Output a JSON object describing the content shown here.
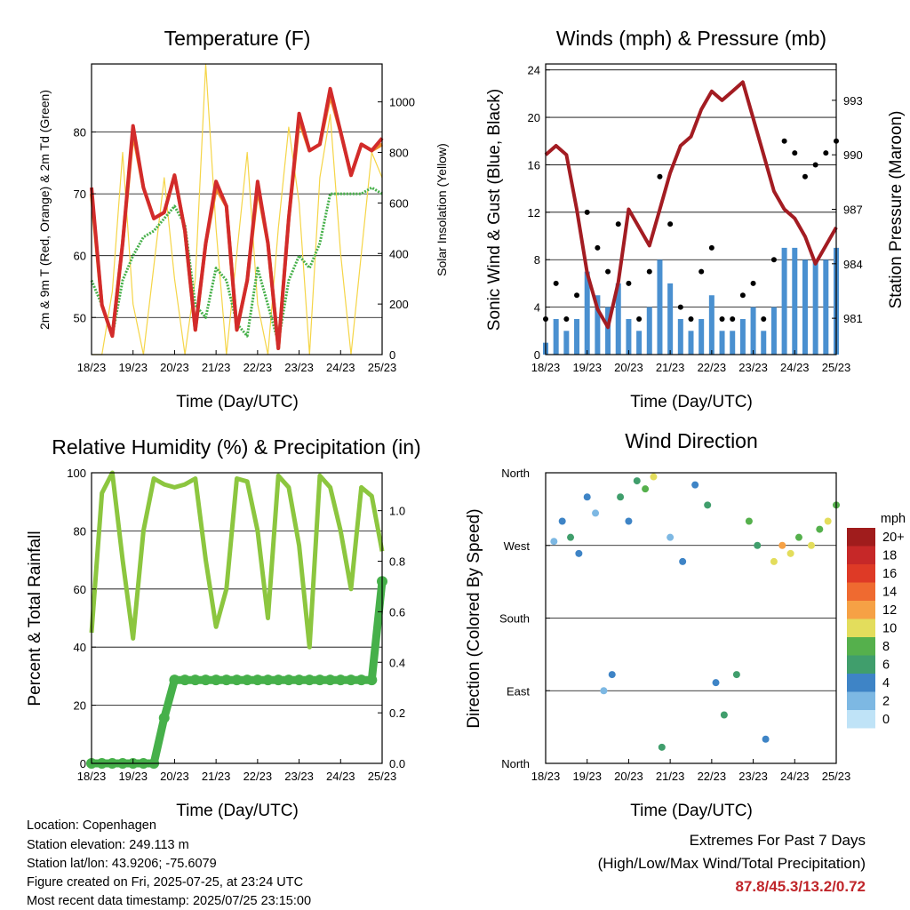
{
  "x_ticks": [
    "18/23",
    "19/23",
    "20/23",
    "21/23",
    "22/23",
    "23/23",
    "24/23",
    "25/23"
  ],
  "charts": {
    "temperature": {
      "title": "Temperature (F)",
      "xlabel": "Time (Day/UTC)",
      "ylabel_left": "2m & 9m T (Red, Orange) & 2m Td (Green)",
      "ylabel_right": "Solar Insolation (Yellow)",
      "yticks_left": [
        "50",
        "60",
        "70",
        "80"
      ],
      "yticks_right": [
        "0",
        "200",
        "400",
        "600",
        "800",
        "1000"
      ]
    },
    "winds": {
      "title": "Winds (mph) & Pressure (mb)",
      "xlabel": "Time (Day/UTC)",
      "ylabel_left": "Sonic Wind & Gust (Blue, Black)",
      "ylabel_right": "Station Pressure (Maroon)",
      "yticks_left": [
        "0",
        "4",
        "8",
        "12",
        "16",
        "20",
        "24"
      ],
      "yticks_right": [
        "981",
        "984",
        "987",
        "990",
        "993"
      ]
    },
    "humidity": {
      "title": "Relative Humidity (%) & Precipitation (in)",
      "xlabel": "Time (Day/UTC)",
      "ylabel_left": "Percent & Total Rainfall",
      "yticks_left": [
        "0",
        "20",
        "40",
        "60",
        "80",
        "100"
      ],
      "yticks_right": [
        "0.0",
        "0.2",
        "0.4",
        "0.6",
        "0.8",
        "1.0"
      ]
    },
    "direction": {
      "title": "Wind Direction",
      "xlabel": "Time (Day/UTC)",
      "ylabel_left": "Direction (Colored By Speed)",
      "yticks_left": [
        "North",
        "East",
        "South",
        "West",
        "North"
      ],
      "legend_title": "mph",
      "legend_labels": [
        "20+",
        "18",
        "16",
        "14",
        "12",
        "10",
        "8",
        "6",
        "4",
        "2",
        "0"
      ],
      "legend_colors": [
        "#a01c1c",
        "#c62828",
        "#de3a26",
        "#ef6a30",
        "#f6a145",
        "#e3dd5c",
        "#55b04c",
        "#409e6c",
        "#3e84c6",
        "#7db8e3",
        "#bfe3f7"
      ]
    }
  },
  "chart_data": [
    {
      "type": "line",
      "title": "Temperature (F)",
      "xlabel": "Time (Day/UTC)",
      "ylabel": "2m & 9m T (Red, Orange) & 2m Td (Green)",
      "y2label": "Solar Insolation (Yellow)",
      "x": [
        18,
        18.25,
        18.5,
        18.75,
        19,
        19.25,
        19.5,
        19.75,
        20,
        20.25,
        20.5,
        20.75,
        21,
        21.25,
        21.5,
        21.75,
        22,
        22.25,
        22.5,
        22.75,
        23,
        23.25,
        23.5,
        23.75,
        24,
        24.25,
        24.5,
        24.75,
        25
      ],
      "ylim": [
        44,
        91
      ],
      "y2lim": [
        0,
        1150
      ],
      "series": [
        {
          "name": "2m T",
          "color": "#d22b2b",
          "values": [
            71,
            52,
            47,
            62,
            81,
            71,
            66,
            67,
            73,
            64,
            48,
            62,
            72,
            68,
            48,
            56,
            72,
            62,
            45,
            66,
            83,
            77,
            78,
            87,
            80,
            73,
            78,
            77,
            79
          ]
        },
        {
          "name": "9m T",
          "color": "#f08c2a",
          "values": [
            70,
            52,
            47,
            62,
            80,
            71,
            66,
            67,
            73,
            64,
            48,
            62,
            71,
            68,
            48,
            56,
            71,
            62,
            45,
            66,
            82,
            77,
            78,
            86,
            80,
            73,
            78,
            77,
            78
          ]
        },
        {
          "name": "2m Td",
          "color": "#46b04a",
          "values": [
            56,
            52,
            47,
            56,
            60,
            63,
            64,
            66,
            68,
            65,
            52,
            50,
            58,
            56,
            49,
            47,
            58,
            52,
            46,
            56,
            60,
            58,
            62,
            70,
            70,
            70,
            70,
            71,
            70
          ]
        },
        {
          "name": "Solar Insolation",
          "color": "#f5d547",
          "axis": "right",
          "values": [
            0,
            0,
            250,
            800,
            200,
            0,
            350,
            700,
            300,
            0,
            300,
            1150,
            500,
            0,
            400,
            800,
            200,
            0,
            500,
            900,
            600,
            0,
            700,
            950,
            400,
            0,
            400,
            800,
            700
          ]
        }
      ]
    },
    {
      "type": "scatter",
      "title": "Winds (mph) & Pressure (mb)",
      "xlabel": "Time (Day/UTC)",
      "ylabel": "Sonic Wind & Gust (Blue, Black)",
      "y2label": "Station Pressure (Maroon)",
      "x": [
        18,
        18.25,
        18.5,
        18.75,
        19,
        19.25,
        19.5,
        19.75,
        20,
        20.25,
        20.5,
        20.75,
        21,
        21.25,
        21.5,
        21.75,
        22,
        22.25,
        22.5,
        22.75,
        23,
        23.25,
        23.5,
        23.75,
        24,
        24.25,
        24.5,
        24.75,
        25
      ],
      "ylim": [
        0,
        24.5
      ],
      "y2lim": [
        979,
        995
      ],
      "series": [
        {
          "name": "Sonic Wind",
          "color": "#4a90d0",
          "values": [
            1,
            3,
            2,
            3,
            7,
            5,
            4,
            6,
            3,
            2,
            4,
            8,
            6,
            3,
            2,
            3,
            5,
            2,
            2,
            3,
            4,
            2,
            4,
            9,
            9,
            8,
            8,
            8,
            9
          ]
        },
        {
          "name": "Gust",
          "color": "#000000",
          "values": [
            3,
            6,
            3,
            5,
            12,
            9,
            7,
            11,
            6,
            3,
            7,
            15,
            11,
            4,
            3,
            7,
            9,
            3,
            3,
            5,
            6,
            3,
            8,
            18,
            17,
            15,
            16,
            17,
            18
          ]
        },
        {
          "name": "Station Pressure",
          "color": "#a31c22",
          "axis": "right",
          "values": [
            990,
            990.5,
            990,
            987,
            983.5,
            981.5,
            980.5,
            983,
            987,
            986,
            985,
            987,
            989,
            990.5,
            991,
            992.5,
            993.5,
            993,
            993.5,
            994,
            992,
            990,
            988,
            987,
            986.5,
            985.5,
            984,
            985,
            986
          ]
        }
      ]
    },
    {
      "type": "line",
      "title": "Relative Humidity (%) & Precipitation (in)",
      "xlabel": "Time (Day/UTC)",
      "ylabel": "Percent & Total Rainfall",
      "x": [
        18,
        18.25,
        18.5,
        18.75,
        19,
        19.25,
        19.5,
        19.75,
        20,
        20.25,
        20.5,
        20.75,
        21,
        21.25,
        21.5,
        21.75,
        22,
        22.25,
        22.5,
        22.75,
        23,
        23.25,
        23.5,
        23.75,
        24,
        24.25,
        24.5,
        24.75,
        25
      ],
      "ylim": [
        0,
        100
      ],
      "y2lim": [
        0,
        1.15
      ],
      "series": [
        {
          "name": "Relative Humidity",
          "color": "#8cc63f",
          "values": [
            45,
            93,
            100,
            70,
            43,
            80,
            98,
            96,
            95,
            96,
            98,
            70,
            47,
            60,
            98,
            97,
            80,
            50,
            99,
            95,
            75,
            40,
            99,
            95,
            80,
            60,
            95,
            92,
            73
          ]
        },
        {
          "name": "Total Precipitation",
          "color": "#46b04a",
          "axis": "right",
          "values": [
            0,
            0,
            0,
            0,
            0,
            0,
            0,
            0.18,
            0.33,
            0.33,
            0.33,
            0.33,
            0.33,
            0.33,
            0.33,
            0.33,
            0.33,
            0.33,
            0.33,
            0.33,
            0.33,
            0.33,
            0.33,
            0.33,
            0.33,
            0.33,
            0.33,
            0.33,
            0.72
          ]
        }
      ]
    },
    {
      "type": "scatter",
      "title": "Wind Direction",
      "xlabel": "Time (Day/UTC)",
      "ylabel": "Direction (Colored By Speed)",
      "yticks": [
        "North",
        "East",
        "South",
        "West",
        "North"
      ],
      "ylim": [
        0,
        360
      ],
      "points": [
        [
          18.2,
          275,
          2
        ],
        [
          18.4,
          300,
          4
        ],
        [
          18.6,
          280,
          6
        ],
        [
          18.8,
          260,
          4
        ],
        [
          19.0,
          330,
          3
        ],
        [
          19.2,
          310,
          2
        ],
        [
          19.4,
          90,
          1
        ],
        [
          19.6,
          110,
          3
        ],
        [
          19.8,
          330,
          5
        ],
        [
          20.0,
          300,
          4
        ],
        [
          20.2,
          350,
          6
        ],
        [
          20.4,
          340,
          8
        ],
        [
          20.6,
          355,
          10
        ],
        [
          20.8,
          20,
          6
        ],
        [
          21.0,
          280,
          2
        ],
        [
          21.3,
          250,
          3
        ],
        [
          21.6,
          345,
          4
        ],
        [
          21.9,
          320,
          6
        ],
        [
          22.1,
          100,
          4
        ],
        [
          22.3,
          60,
          6
        ],
        [
          22.6,
          110,
          6
        ],
        [
          22.9,
          300,
          7
        ],
        [
          23.1,
          270,
          6
        ],
        [
          23.3,
          30,
          4
        ],
        [
          23.5,
          250,
          10
        ],
        [
          23.7,
          270,
          12
        ],
        [
          23.9,
          260,
          10
        ],
        [
          24.1,
          280,
          8
        ],
        [
          24.4,
          270,
          10
        ],
        [
          24.6,
          290,
          8
        ],
        [
          24.8,
          300,
          9
        ],
        [
          25.0,
          320,
          7
        ]
      ]
    }
  ],
  "info": {
    "location": "Location: Copenhagen",
    "elevation": "Station elevation: 249.113 m",
    "latlon": "Station lat/lon: 43.9206; -75.6079",
    "created": "Figure created on Fri, 2025-07-25, at 23:24 UTC",
    "recent": "Most recent data timestamp: 2025/07/25 23:15:00"
  },
  "extremes": {
    "line1": "Extremes For Past 7 Days",
    "line2": "(High/Low/Max Wind/Total Precipitation)",
    "values": "87.8/45.3/13.2/0.72"
  }
}
